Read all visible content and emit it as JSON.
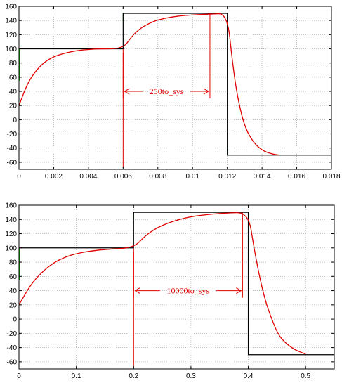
{
  "colors": {
    "background": "#ffffff",
    "axes": "#000000",
    "grid": "#9a9a9a",
    "reference_line": "#000000",
    "response_line": "#e00000",
    "edge_marks": "#00b000",
    "annotation": "#e00000"
  },
  "chart_data": [
    {
      "type": "line",
      "title": "",
      "xlabel": "",
      "ylabel": "",
      "grid": true,
      "xlim": [
        0,
        0.018
      ],
      "ylim": [
        -70,
        160
      ],
      "x_ticks": [
        0,
        0.002,
        0.004,
        0.006,
        0.008,
        0.01,
        0.012,
        0.014,
        0.016,
        0.018
      ],
      "x_tick_labels": [
        "0",
        "0.002",
        "0.004",
        "0.006",
        "0.008",
        "0.01",
        "0.012",
        "0.014",
        "0.016",
        "0.018"
      ],
      "y_ticks": [
        -60,
        -40,
        -20,
        0,
        20,
        40,
        60,
        80,
        100,
        120,
        140,
        160
      ],
      "y_tick_labels": [
        "-60",
        "-40",
        "-20",
        "0",
        "20",
        "40",
        "60",
        "80",
        "100",
        "120",
        "140",
        "160"
      ],
      "reference": {
        "x": [
          0,
          0.006,
          0.006,
          0.012,
          0.012,
          0.018
        ],
        "y": [
          100,
          100,
          150,
          150,
          -50,
          -50
        ]
      },
      "response": {
        "x": [
          0,
          0.0005,
          0.001,
          0.0015,
          0.002,
          0.0025,
          0.003,
          0.0035,
          0.004,
          0.0045,
          0.006,
          0.0065,
          0.007,
          0.0075,
          0.008,
          0.009,
          0.01,
          0.011,
          0.012,
          0.0123,
          0.0126,
          0.013,
          0.0135,
          0.014,
          0.0145,
          0.015
        ],
        "y": [
          20,
          52,
          70,
          82,
          89,
          93,
          96,
          98,
          99,
          100,
          100,
          118,
          129,
          136,
          141,
          146,
          148,
          149,
          150,
          80,
          30,
          -10,
          -32,
          -43,
          -48,
          -50
        ]
      },
      "annotation": {
        "text": "250to_sys",
        "x_start": 0.006,
        "x_end": 0.011,
        "y": 40
      }
    },
    {
      "type": "line",
      "title": "",
      "xlabel": "",
      "ylabel": "",
      "grid": true,
      "xlim": [
        0,
        0.55
      ],
      "ylim": [
        -70,
        160
      ],
      "x_ticks": [
        0,
        0.1,
        0.2,
        0.3,
        0.4,
        0.5
      ],
      "x_tick_labels": [
        "0",
        "0.1",
        "0.2",
        "0.3",
        "0.4",
        "0.5"
      ],
      "y_ticks": [
        -60,
        -40,
        -20,
        0,
        20,
        40,
        60,
        80,
        100,
        120,
        140,
        160
      ],
      "y_tick_labels": [
        "-60",
        "-40",
        "-20",
        "0",
        "20",
        "40",
        "60",
        "80",
        "100",
        "120",
        "140",
        "160"
      ],
      "reference": {
        "x": [
          0,
          0.2,
          0.2,
          0.4,
          0.4,
          0.55
        ],
        "y": [
          100,
          100,
          150,
          150,
          -50,
          -50
        ]
      },
      "response": {
        "x": [
          0,
          0.02,
          0.04,
          0.06,
          0.08,
          0.1,
          0.12,
          0.15,
          0.2,
          0.22,
          0.24,
          0.26,
          0.28,
          0.3,
          0.33,
          0.36,
          0.4,
          0.41,
          0.42,
          0.43,
          0.44,
          0.45,
          0.46,
          0.48,
          0.5
        ],
        "y": [
          20,
          48,
          66,
          79,
          87,
          92,
          95,
          98,
          100,
          117,
          128,
          135,
          140,
          144,
          147,
          149,
          150,
          100,
          58,
          25,
          2,
          -18,
          -30,
          -43,
          -49
        ]
      },
      "annotation": {
        "text": "10000to_sys",
        "x_start": 0.2,
        "x_end": 0.39,
        "y": 40
      }
    }
  ]
}
